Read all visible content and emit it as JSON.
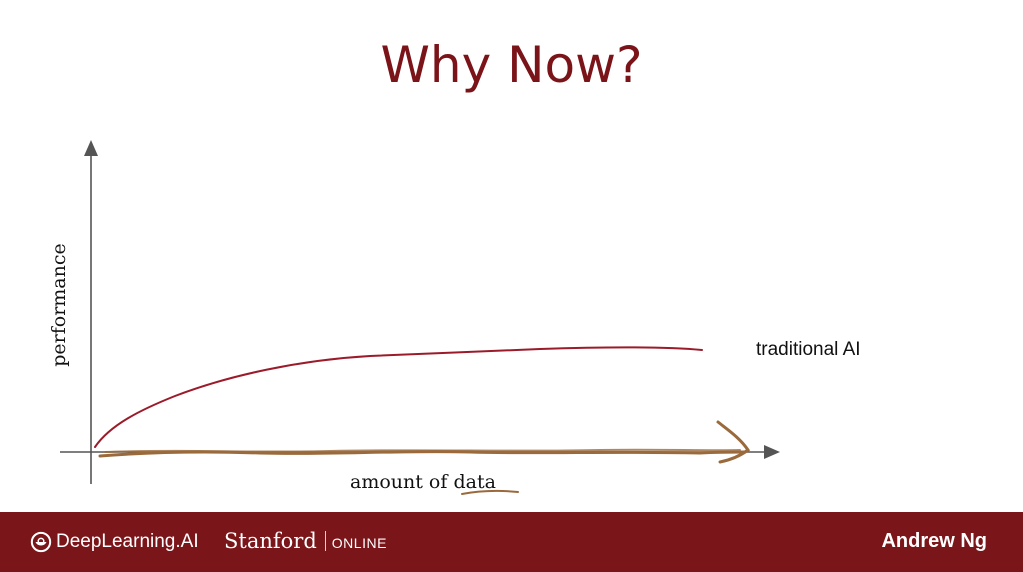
{
  "slide": {
    "title": "Why Now?",
    "y_axis_label": "performance",
    "x_axis_label_prefix": "amount of ",
    "x_axis_label_emphasis": "data",
    "curve_label": "traditional AI",
    "colors": {
      "title": "#7b1419",
      "traditional_ai_curve": "#9b1b2a",
      "annotation_stroke": "#9a6a3c",
      "axis": "#555555"
    }
  },
  "footer": {
    "brand": "DeepLearning.AI",
    "partner": "Stanford",
    "partner_suffix": "ONLINE",
    "presenter": "Andrew Ng",
    "background": "#7a1519"
  }
}
